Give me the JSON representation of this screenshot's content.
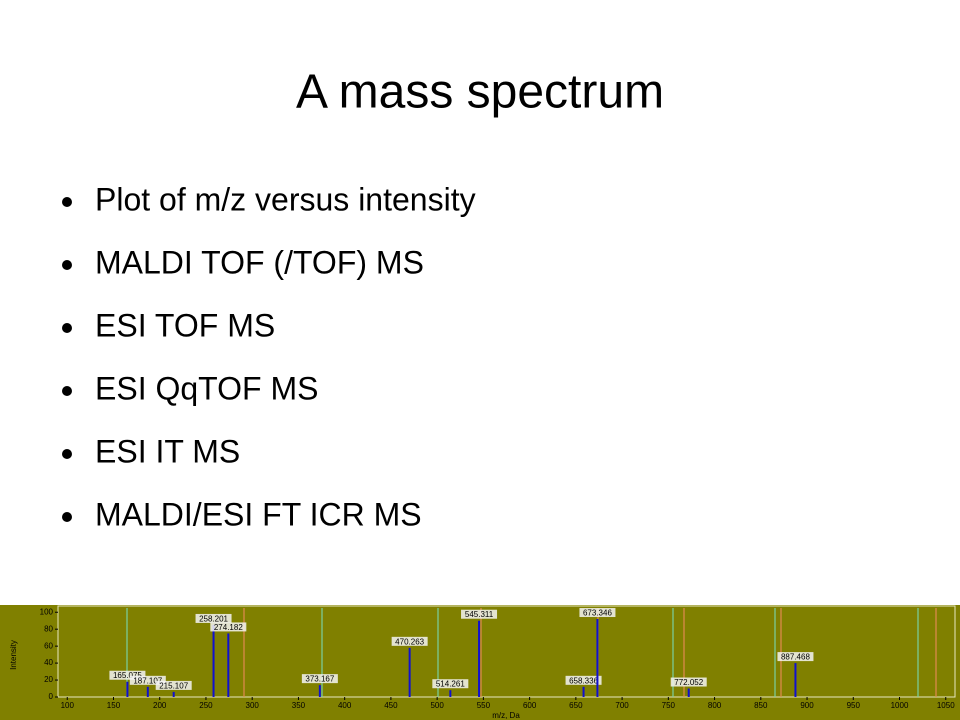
{
  "slide": {
    "title": "A mass spectrum",
    "bullets": [
      "Plot of m/z versus intensity",
      "MALDI TOF (/TOF) MS",
      "ESI TOF MS",
      "ESI QqTOF MS",
      "ESI IT MS",
      "MALDI/ESI FT ICR MS"
    ]
  },
  "chart_data": {
    "type": "stem",
    "xlabel": "m/z, Da",
    "ylabel": "Intensity",
    "x": [
      165.075,
      187.107,
      215.107,
      258.201,
      274.182,
      373.167,
      470.263,
      514.261,
      545.311,
      658.336,
      673.346,
      772.052,
      887.468
    ],
    "values": [
      18,
      12,
      6,
      85,
      75,
      14,
      58,
      8,
      90,
      12,
      92,
      10,
      40
    ],
    "color": "#1010d0",
    "xlim": [
      90,
      1060
    ],
    "xticks": [
      100,
      150,
      200,
      250,
      300,
      350,
      400,
      450,
      500,
      550,
      600,
      650,
      700,
      750,
      800,
      850,
      900,
      950,
      1000,
      1050
    ],
    "ylim": [
      0,
      105
    ],
    "yticks": [
      0,
      20,
      40,
      60,
      80,
      100
    ]
  }
}
